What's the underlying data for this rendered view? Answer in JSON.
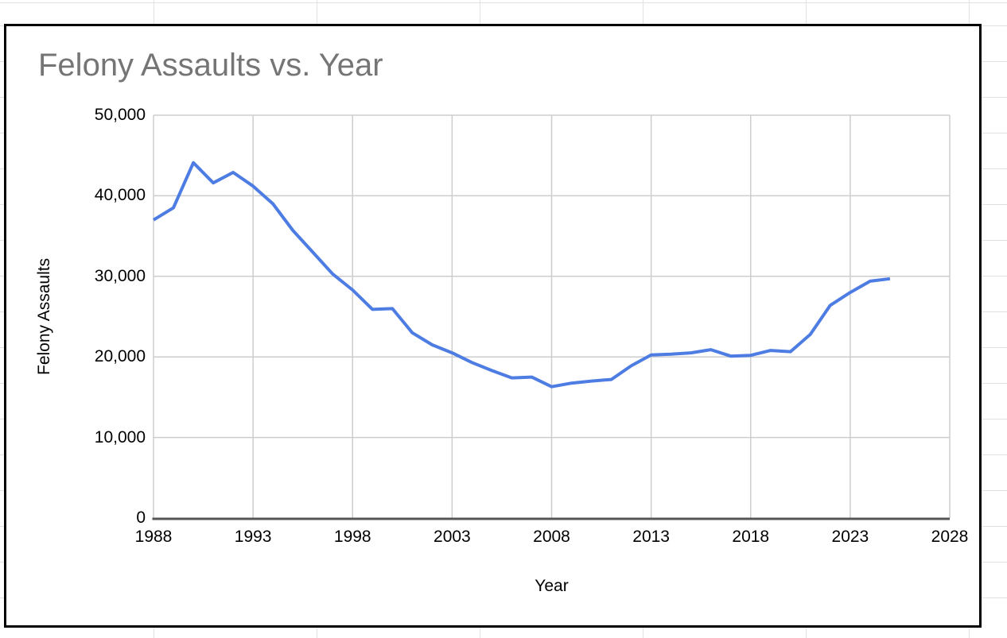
{
  "app": {
    "surface": "spreadsheet-with-embedded-chart",
    "title": "Felony Assaults vs. Year"
  },
  "colors": {
    "chart_border": "#000000",
    "chart_background": "#ffffff",
    "sheet_gridline": "#e0e1e3",
    "plot_gridline": "#cdcdcd",
    "axis_line": "#555555",
    "tick_text": "#000000",
    "axis_title_text": "#000000",
    "title_text": "#757575",
    "series_line": "#4d7ce2"
  },
  "chart_data": {
    "type": "line",
    "title": "Felony Assaults vs. Year",
    "xlabel": "Year",
    "ylabel": "Felony Assaults",
    "xlim": [
      1988,
      2028
    ],
    "ylim": [
      0,
      50000
    ],
    "x_ticks": [
      1988,
      1993,
      1998,
      2003,
      2008,
      2013,
      2018,
      2023,
      2028
    ],
    "x_tick_labels": [
      "1988",
      "1993",
      "1998",
      "2003",
      "2008",
      "2013",
      "2018",
      "2023",
      "2028"
    ],
    "y_ticks": [
      0,
      10000,
      20000,
      30000,
      40000,
      50000
    ],
    "y_tick_labels": [
      "0",
      "10,000",
      "20,000",
      "30,000",
      "40,000",
      "50,000"
    ],
    "grid": true,
    "legend_position": "none",
    "series": [
      {
        "name": "Felony Assaults",
        "color": "#4d7ce2",
        "x": [
          1988,
          1989,
          1990,
          1991,
          1992,
          1993,
          1994,
          1995,
          1996,
          1997,
          1998,
          1999,
          2000,
          2001,
          2002,
          2003,
          2004,
          2005,
          2006,
          2007,
          2008,
          2009,
          2010,
          2011,
          2012,
          2013,
          2014,
          2015,
          2016,
          2017,
          2018,
          2019,
          2020,
          2021,
          2022,
          2023,
          2024,
          2025
        ],
        "values": [
          37000,
          38500,
          44100,
          41600,
          42900,
          41200,
          39000,
          35700,
          33000,
          30300,
          28300,
          25900,
          26000,
          23000,
          21500,
          20500,
          19300,
          18300,
          17400,
          17500,
          16300,
          16750,
          17000,
          17200,
          18900,
          20250,
          20350,
          20500,
          20900,
          20100,
          20200,
          20800,
          20650,
          22800,
          26400,
          28000,
          29400,
          29700
        ]
      }
    ]
  }
}
